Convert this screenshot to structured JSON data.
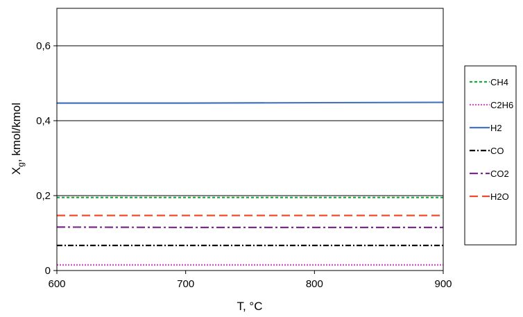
{
  "chart_data": {
    "type": "line",
    "xlabel": "T, °C",
    "ylabel_main": "X",
    "ylabel_sub": "g",
    "ylabel_rest": ", kmol/kmol",
    "xlim": [
      600,
      900
    ],
    "ylim": [
      0,
      0.7
    ],
    "x_ticks": [
      600,
      700,
      800,
      900
    ],
    "x_tick_labels": [
      "600",
      "700",
      "800",
      "900"
    ],
    "y_ticks": [
      0,
      0.2,
      0.4,
      0.6
    ],
    "y_tick_labels": [
      "0",
      "0,2",
      "0,4",
      "0,6"
    ],
    "grid": "horizontal",
    "legend_position": "right",
    "x": [
      600,
      700,
      800,
      900
    ],
    "series": [
      {
        "name": "CH4",
        "values": [
          0.195,
          0.195,
          0.195,
          0.195
        ],
        "color": "#1aa63a",
        "dash": "4,3"
      },
      {
        "name": "C2H6",
        "values": [
          0.015,
          0.015,
          0.015,
          0.015
        ],
        "color": "#d94fc8",
        "dash": "2,2"
      },
      {
        "name": "H2",
        "values": [
          0.447,
          0.447,
          0.448,
          0.449
        ],
        "color": "#4472c4",
        "dash": ""
      },
      {
        "name": "CO",
        "values": [
          0.067,
          0.067,
          0.067,
          0.067
        ],
        "color": "#000000",
        "dash": "8,3,2,3"
      },
      {
        "name": "CO2",
        "values": [
          0.116,
          0.115,
          0.115,
          0.115
        ],
        "color": "#7b2a8c",
        "dash": "12,4,3,4"
      },
      {
        "name": "H2O",
        "values": [
          0.147,
          0.147,
          0.147,
          0.147
        ],
        "color": "#f04a2a",
        "dash": "12,6"
      }
    ]
  }
}
